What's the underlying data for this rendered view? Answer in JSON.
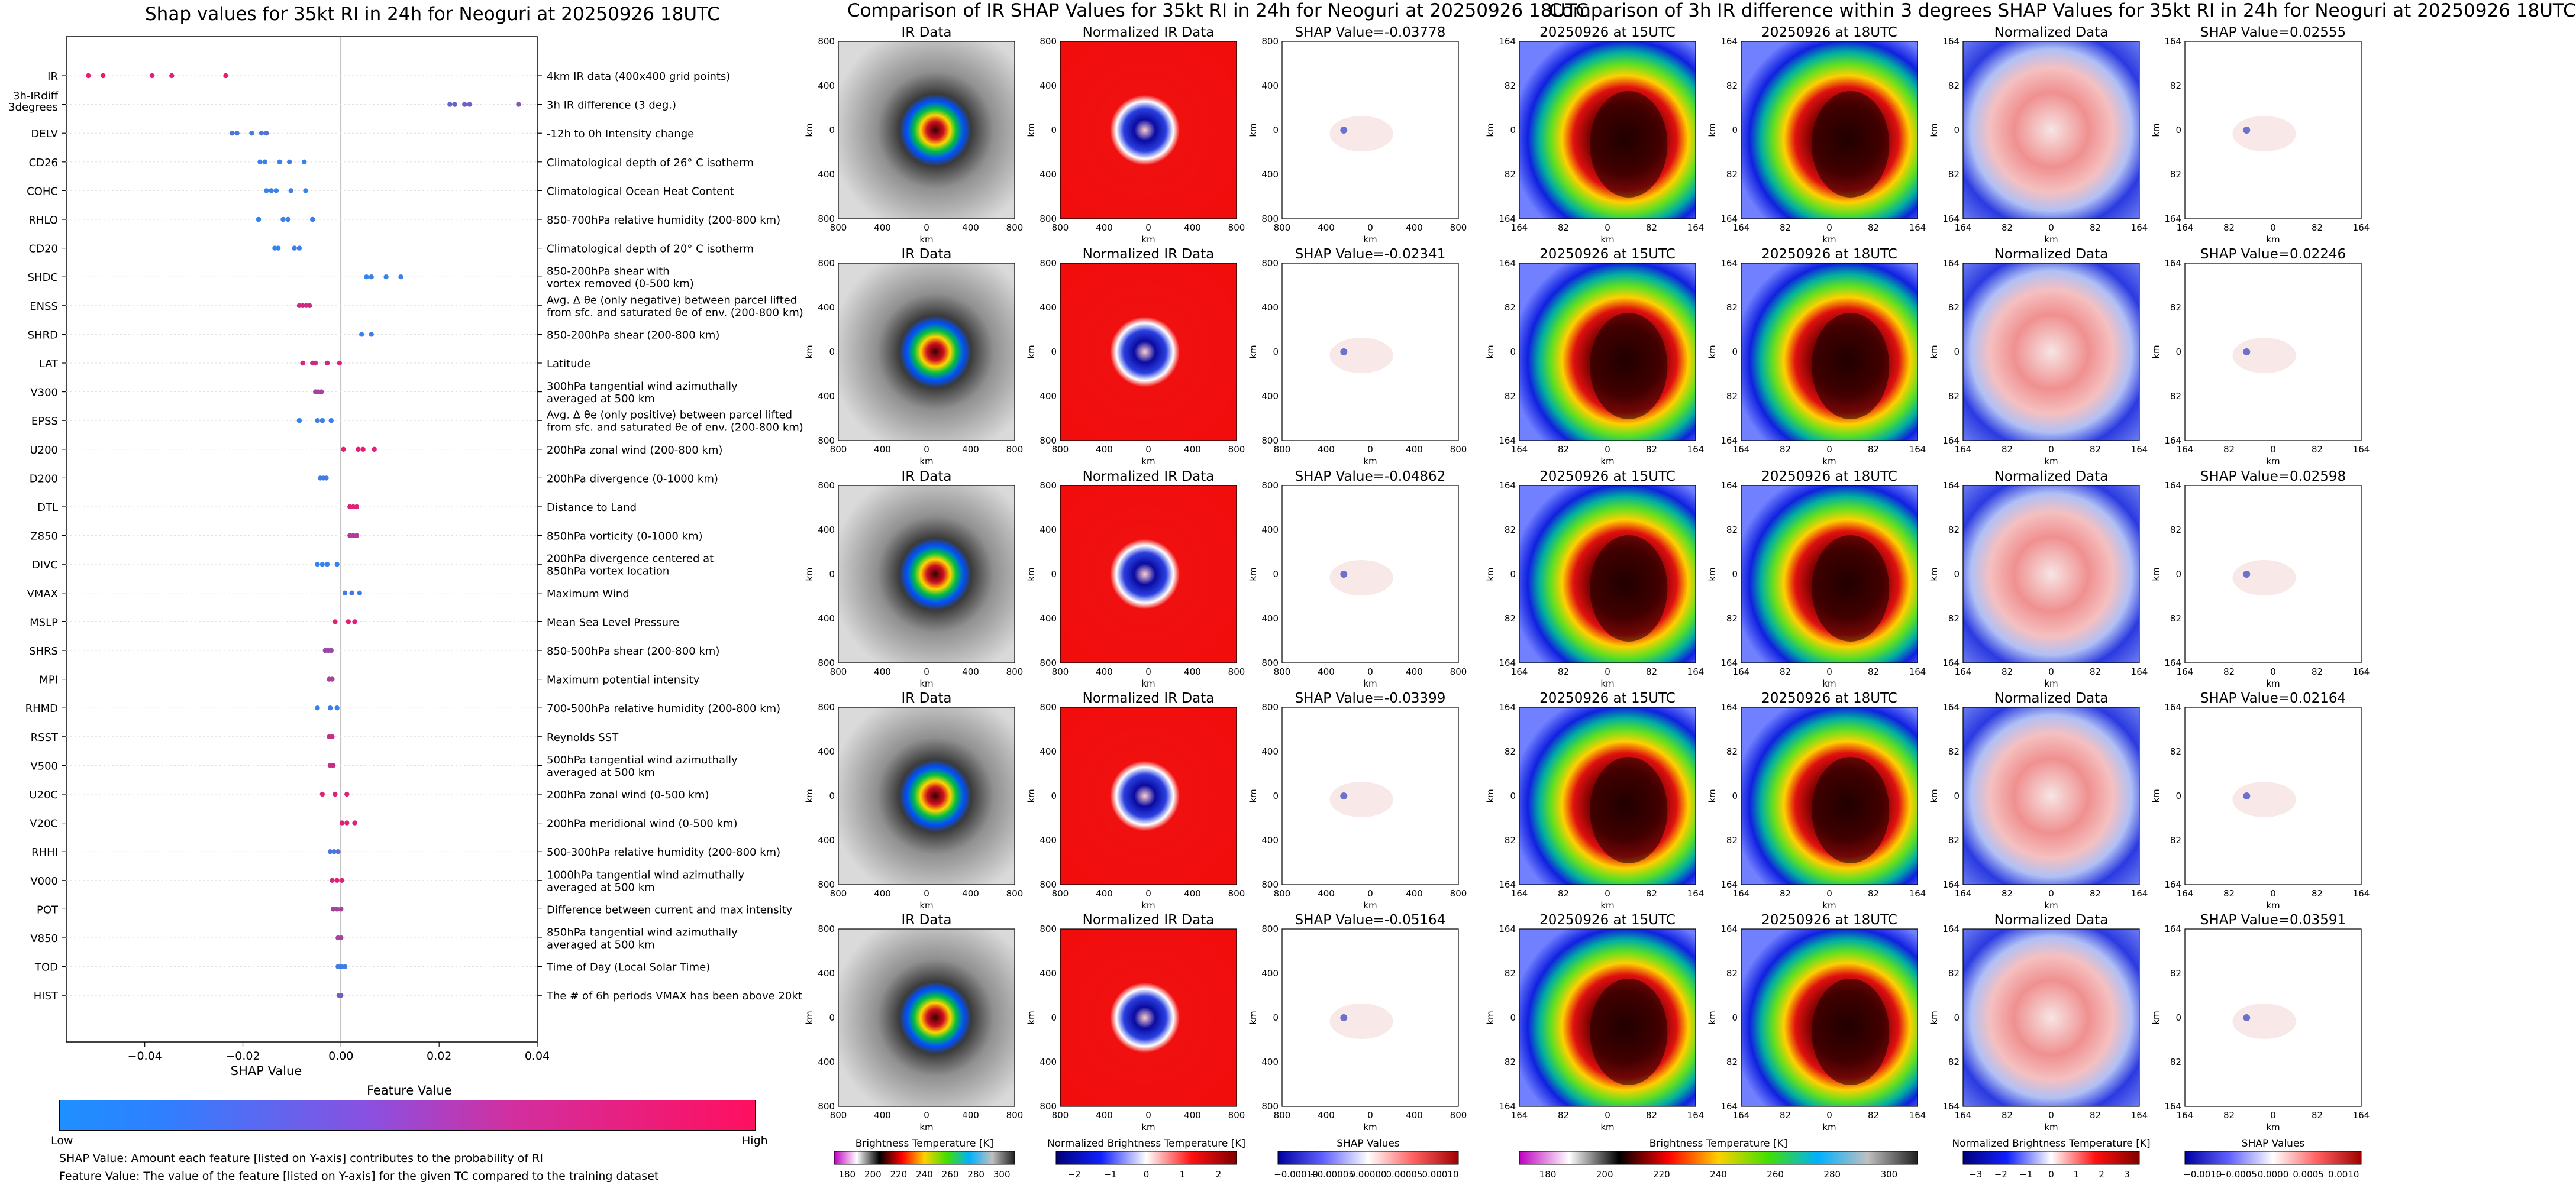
{
  "left_panel": {
    "title": "Shap values for 35kt RI in 24h for Neoguri at 20250926 18UTC",
    "xlabel": "SHAP Value",
    "colorbar_title": "Feature Value",
    "colorbar_low": "Low",
    "colorbar_high": "High",
    "note1": "SHAP Value: Amount each feature [listed on Y-axis] contributes to the probability of RI",
    "note2": "Feature Value: The value of the feature [listed on Y-axis] for the given TC compared to the training dataset"
  },
  "chart_data": {
    "type": "scatter",
    "title": "Shap values for 35kt RI in 24h for Neoguri at 20250926 18UTC",
    "xlabel": "SHAP Value",
    "xlim": [
      -0.056,
      0.04
    ],
    "xticks": [
      -0.04,
      -0.02,
      0.0,
      0.02,
      0.04
    ],
    "xtick_labels": [
      "−0.04",
      "−0.02",
      "0.00",
      "0.02",
      "0.04"
    ],
    "colorscale": [
      "#1e90ff",
      "#ff0f5f"
    ],
    "features": [
      {
        "name": "IR",
        "desc": [
          "4km IR data (400x400 grid points)"
        ],
        "pts": [
          [
            -0.0515,
            0.9
          ],
          [
            -0.0485,
            0.9
          ],
          [
            -0.0385,
            0.85
          ],
          [
            -0.0345,
            0.85
          ],
          [
            -0.0235,
            0.9
          ]
        ]
      },
      {
        "name": "3h-IRdiff\n3degrees",
        "desc": [
          "3h IR difference (3 deg.)"
        ],
        "pts": [
          [
            0.0222,
            0.3
          ],
          [
            0.0232,
            0.35
          ],
          [
            0.0252,
            0.4
          ],
          [
            0.0262,
            0.35
          ],
          [
            0.0362,
            0.45
          ]
        ]
      },
      {
        "name": "DELV",
        "desc": [
          "-12h to 0h Intensity change"
        ],
        "pts": [
          [
            -0.0222,
            0.2
          ],
          [
            -0.0212,
            0.2
          ],
          [
            -0.0182,
            0.15
          ],
          [
            -0.0162,
            0.2
          ],
          [
            -0.0152,
            0.25
          ]
        ]
      },
      {
        "name": "CD26",
        "desc": [
          "Climatological depth of 26° C isotherm"
        ],
        "pts": [
          [
            -0.0165,
            0.1
          ],
          [
            -0.0155,
            0.15
          ],
          [
            -0.0125,
            0.1
          ],
          [
            -0.0105,
            0.15
          ],
          [
            -0.0075,
            0.1
          ]
        ]
      },
      {
        "name": "COHC",
        "desc": [
          "Climatological Ocean Heat Content"
        ],
        "pts": [
          [
            -0.0152,
            0.1
          ],
          [
            -0.0142,
            0.15
          ],
          [
            -0.0132,
            0.1
          ],
          [
            -0.0102,
            0.15
          ],
          [
            -0.0072,
            0.1
          ]
        ]
      },
      {
        "name": "RHLO",
        "desc": [
          "850-700hPa relative humidity (200-800 km)"
        ],
        "pts": [
          [
            -0.0168,
            0.1
          ],
          [
            -0.0118,
            0.15
          ],
          [
            -0.0108,
            0.1
          ],
          [
            -0.0058,
            0.15
          ]
        ]
      },
      {
        "name": "CD20",
        "desc": [
          "Climatological depth of 20° C isotherm"
        ],
        "pts": [
          [
            -0.0135,
            0.1
          ],
          [
            -0.0128,
            0.1
          ],
          [
            -0.0095,
            0.15
          ],
          [
            -0.0085,
            0.1
          ]
        ]
      },
      {
        "name": "SHDC",
        "desc": [
          "850-200hPa shear with",
          "vortex removed (0-500 km)"
        ],
        "pts": [
          [
            0.0052,
            0.1
          ],
          [
            0.0062,
            0.15
          ],
          [
            0.0092,
            0.1
          ],
          [
            0.0122,
            0.15
          ]
        ]
      },
      {
        "name": "ENSS",
        "desc": [
          "Avg. Δ θe (only negative) between parcel lifted",
          "from sfc. and saturated θe of env. (200-800 km)"
        ],
        "pts": [
          [
            -0.0085,
            0.8
          ],
          [
            -0.0078,
            0.8
          ],
          [
            -0.0071,
            0.75
          ],
          [
            -0.0064,
            0.8
          ]
        ]
      },
      {
        "name": "SHRD",
        "desc": [
          "850-200hPa shear (200-800 km)"
        ],
        "pts": [
          [
            0.0042,
            0.1
          ],
          [
            0.0062,
            0.15
          ]
        ]
      },
      {
        "name": "LAT",
        "desc": [
          "Latitude"
        ],
        "pts": [
          [
            -0.0078,
            0.8
          ],
          [
            -0.0058,
            0.8
          ],
          [
            -0.0052,
            0.75
          ],
          [
            -0.0028,
            0.8
          ],
          [
            -0.0003,
            0.85
          ]
        ]
      },
      {
        "name": "V300",
        "desc": [
          "300hPa tangential wind azimuthally",
          "averaged at 500 km"
        ],
        "pts": [
          [
            -0.0052,
            0.6
          ],
          [
            -0.0046,
            0.6
          ],
          [
            -0.004,
            0.6
          ]
        ]
      },
      {
        "name": "EPSS",
        "desc": [
          "Avg. Δ θe (only positive) between parcel lifted",
          "from sfc. and saturated θe of env. (200-800 km)"
        ],
        "pts": [
          [
            -0.0085,
            0.1
          ],
          [
            -0.0048,
            0.15
          ],
          [
            -0.0038,
            0.1
          ],
          [
            -0.002,
            0.15
          ]
        ]
      },
      {
        "name": "U200",
        "desc": [
          "200hPa zonal wind (200-800 km)"
        ],
        "pts": [
          [
            0.0005,
            0.9
          ],
          [
            0.0035,
            0.85
          ],
          [
            0.0045,
            0.9
          ],
          [
            0.0068,
            0.85
          ]
        ]
      },
      {
        "name": "D200",
        "desc": [
          "200hPa divergence (0-1000 km)"
        ],
        "pts": [
          [
            -0.0042,
            0.15
          ],
          [
            -0.0036,
            0.15
          ],
          [
            -0.003,
            0.15
          ]
        ]
      },
      {
        "name": "DTL",
        "desc": [
          "Distance to Land"
        ],
        "pts": [
          [
            0.0018,
            0.85
          ],
          [
            0.0025,
            0.85
          ],
          [
            0.0032,
            0.85
          ]
        ]
      },
      {
        "name": "Z850",
        "desc": [
          "850hPa vorticity (0-1000 km)"
        ],
        "pts": [
          [
            0.0018,
            0.65
          ],
          [
            0.0025,
            0.65
          ],
          [
            0.0032,
            0.65
          ]
        ]
      },
      {
        "name": "DIVC",
        "desc": [
          "200hPa divergence centered at",
          "850hPa vortex location"
        ],
        "pts": [
          [
            -0.0048,
            0.1
          ],
          [
            -0.0038,
            0.1
          ],
          [
            -0.0028,
            0.1
          ],
          [
            -0.0008,
            0.1
          ]
        ]
      },
      {
        "name": "VMAX",
        "desc": [
          "Maximum Wind"
        ],
        "pts": [
          [
            0.0008,
            0.15
          ],
          [
            0.0022,
            0.2
          ],
          [
            0.0038,
            0.15
          ]
        ]
      },
      {
        "name": "MSLP",
        "desc": [
          "Mean Sea Level Pressure"
        ],
        "pts": [
          [
            -0.0012,
            0.85
          ],
          [
            0.0015,
            0.85
          ],
          [
            0.0028,
            0.85
          ]
        ]
      },
      {
        "name": "SHRS",
        "desc": [
          "850-500hPa shear (200-800 km)"
        ],
        "pts": [
          [
            -0.0032,
            0.55
          ],
          [
            -0.0026,
            0.55
          ],
          [
            -0.002,
            0.55
          ]
        ]
      },
      {
        "name": "MPI",
        "desc": [
          "Maximum potential intensity"
        ],
        "pts": [
          [
            -0.0024,
            0.6
          ],
          [
            -0.0018,
            0.6
          ]
        ]
      },
      {
        "name": "RHMD",
        "desc": [
          "700-500hPa relative humidity (200-800 km)"
        ],
        "pts": [
          [
            -0.0048,
            0.1
          ],
          [
            -0.0022,
            0.15
          ],
          [
            -0.0008,
            0.1
          ]
        ]
      },
      {
        "name": "RSST",
        "desc": [
          "Reynolds SST"
        ],
        "pts": [
          [
            -0.0024,
            0.75
          ],
          [
            -0.0018,
            0.75
          ]
        ]
      },
      {
        "name": "V500",
        "desc": [
          "500hPa tangential wind azimuthally",
          "averaged at 500 km"
        ],
        "pts": [
          [
            -0.0022,
            0.75
          ],
          [
            -0.0016,
            0.75
          ]
        ]
      },
      {
        "name": "U20C",
        "desc": [
          "200hPa zonal wind (0-500 km)"
        ],
        "pts": [
          [
            -0.0038,
            0.85
          ],
          [
            -0.0012,
            0.85
          ],
          [
            0.0012,
            0.85
          ]
        ]
      },
      {
        "name": "V20C",
        "desc": [
          "200hPa meridional wind (0-500 km)"
        ],
        "pts": [
          [
            0.0002,
            0.9
          ],
          [
            0.0012,
            0.85
          ],
          [
            0.0028,
            0.85
          ]
        ]
      },
      {
        "name": "RHHI",
        "desc": [
          "500-300hPa relative humidity (200-800 km)"
        ],
        "pts": [
          [
            -0.0022,
            0.2
          ],
          [
            -0.0014,
            0.2
          ],
          [
            -0.0006,
            0.25
          ]
        ]
      },
      {
        "name": "V000",
        "desc": [
          "1000hPa tangential wind azimuthally",
          "averaged at 500 km"
        ],
        "pts": [
          [
            -0.0018,
            0.85
          ],
          [
            -0.0008,
            0.85
          ],
          [
            0.0002,
            0.85
          ]
        ]
      },
      {
        "name": "POT",
        "desc": [
          "Difference between current and max intensity"
        ],
        "pts": [
          [
            -0.0016,
            0.6
          ],
          [
            -0.0008,
            0.6
          ],
          [
            0.0,
            0.6
          ]
        ]
      },
      {
        "name": "V850",
        "desc": [
          "850hPa tangential wind azimuthally",
          "averaged at 500 km"
        ],
        "pts": [
          [
            -0.0006,
            0.6
          ],
          [
            0.0,
            0.6
          ]
        ]
      },
      {
        "name": "TOD",
        "desc": [
          "Time of Day (Local Solar Time)"
        ],
        "pts": [
          [
            -0.0006,
            0.15
          ],
          [
            0.0,
            0.15
          ],
          [
            0.0008,
            0.15
          ]
        ]
      },
      {
        "name": "HIST",
        "desc": [
          "The # of 6h periods VMAX has been above 20kt"
        ],
        "pts": [
          [
            -0.0004,
            0.4
          ],
          [
            0.0,
            0.4
          ]
        ]
      }
    ]
  },
  "middle_block": {
    "title": "Comparison of IR SHAP Values for 35kt RI in 24h for Neoguri at 20250926 18UTC",
    "columns": [
      "IR Data",
      "Normalized IR Data"
    ],
    "shap_titles": [
      "SHAP Value=-0.03778",
      "SHAP Value=-0.02341",
      "SHAP Value=-0.04862",
      "SHAP Value=-0.03399",
      "SHAP Value=-0.05164"
    ],
    "axis_label": "km",
    "ticks": [
      "800",
      "400",
      "0",
      "400",
      "800"
    ],
    "colorbars": [
      {
        "label": "Brightness Temperature [K]",
        "ticks": [
          "180",
          "200",
          "220",
          "240",
          "260",
          "280",
          "300"
        ]
      },
      {
        "label": "Normalized Brightness Temperature [K]",
        "ticks": [
          "−2",
          "−1",
          "0",
          "1",
          "2"
        ]
      },
      {
        "label": "SHAP Values",
        "ticks": [
          "−0.00010",
          "−0.00005",
          "0.00000",
          "0.00005",
          "0.00010"
        ]
      }
    ]
  },
  "right_block": {
    "title": "Comparison of 3h IR difference within 3 degrees SHAP Values for 35kt RI in 24h for Neoguri at 20250926 18UTC",
    "columns": [
      "20250926 at 15UTC",
      "20250926 at 18UTC",
      "Normalized Data"
    ],
    "shap_titles": [
      "SHAP Value=0.02555",
      "SHAP Value=0.02246",
      "SHAP Value=0.02598",
      "SHAP Value=0.02164",
      "SHAP Value=0.03591"
    ],
    "axis_label": "km",
    "ticks": [
      "164",
      "82",
      "0",
      "82",
      "164"
    ],
    "colorbars": [
      {
        "label": "Brightness Temperature [K]",
        "ticks": [
          "180",
          "200",
          "220",
          "240",
          "260",
          "280",
          "300"
        ]
      },
      {
        "label": "Normalized Brightness Temperature [K]",
        "ticks": [
          "−3",
          "−2",
          "−1",
          "0",
          "1",
          "2",
          "3"
        ]
      },
      {
        "label": "SHAP Values",
        "ticks": [
          "−0.0010",
          "−0.0005",
          "0.0000",
          "0.0005",
          "0.0010"
        ]
      }
    ]
  },
  "colors": {
    "ir_gray_dark": "#6e6e6e",
    "ir_gray_light": "#dcdcdc",
    "norm_red": "#f20d0d",
    "low": "#1e90ff",
    "high": "#ff0f5f"
  }
}
